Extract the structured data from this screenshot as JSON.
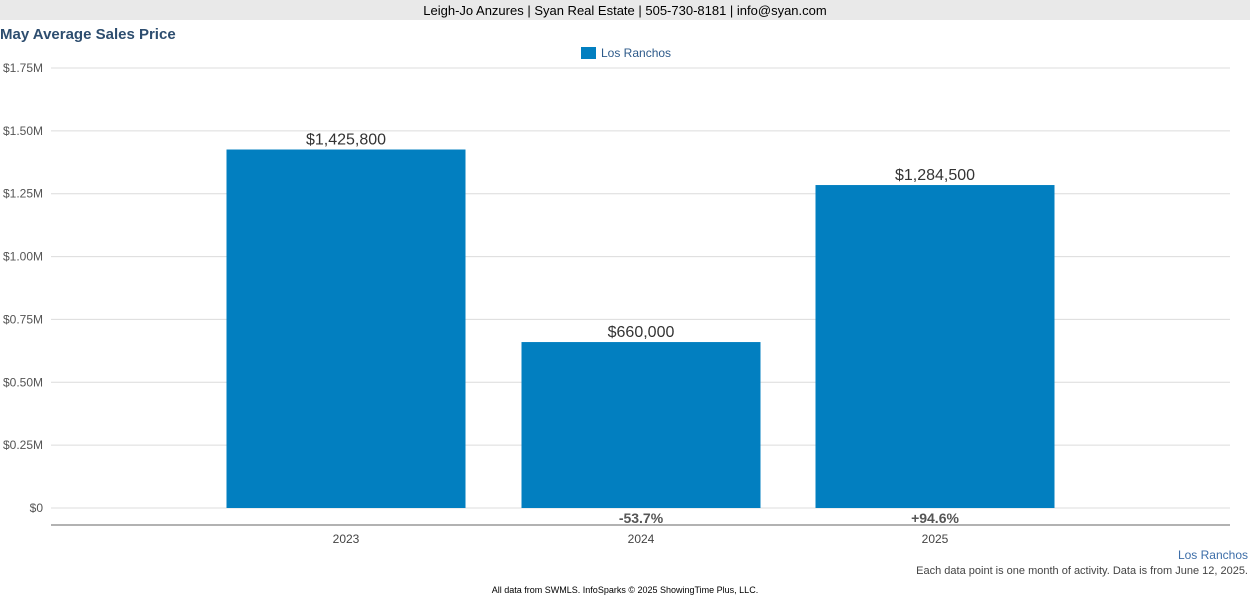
{
  "header": {
    "text": "Leigh-Jo Anzures | Syan Real Estate | 505-730-8181 | info@syan.com"
  },
  "chart_data": {
    "type": "bar",
    "title": "May Average Sales Price",
    "categories": [
      "2023",
      "2024",
      "2025"
    ],
    "series": [
      {
        "name": "Los Ranchos",
        "values": [
          1425800,
          660000,
          1284500
        ],
        "color": "#027fc0"
      }
    ],
    "value_labels": [
      "$1,425,800",
      "$660,000",
      "$1,284,500"
    ],
    "change_labels": [
      "",
      "-53.7%",
      "+94.6%"
    ],
    "y_ticks": [
      {
        "value": 0,
        "label": "$0"
      },
      {
        "value": 250000,
        "label": "$0.25M"
      },
      {
        "value": 500000,
        "label": "$0.50M"
      },
      {
        "value": 750000,
        "label": "$0.75M"
      },
      {
        "value": 1000000,
        "label": "$1.00M"
      },
      {
        "value": 1250000,
        "label": "$1.25M"
      },
      {
        "value": 1500000,
        "label": "$1.50M"
      },
      {
        "value": 1750000,
        "label": "$1.75M"
      }
    ],
    "ylim": [
      0,
      1750000
    ],
    "grid": true,
    "legend_position": "top-center"
  },
  "source_link": "Los Ranchos",
  "note": "Each data point is one month of activity. Data is from June 12, 2025.",
  "footer": "All data from SWMLS. InfoSparks © 2025 ShowingTime Plus, LLC."
}
